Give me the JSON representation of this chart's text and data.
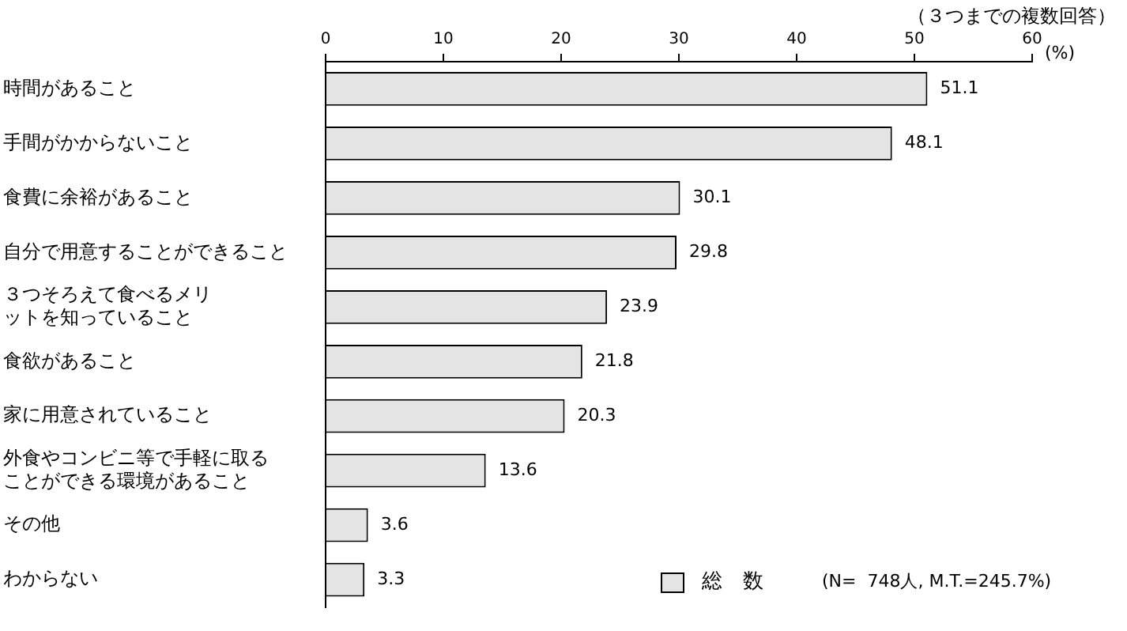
{
  "chart_data": {
    "type": "bar",
    "orientation": "horizontal",
    "categories": [
      "時間があること",
      "手間がかからないこと",
      "食費に余裕があること",
      "自分で用意することができること",
      "３つそろえて食べるメリットを知っていること",
      "食欲があること",
      "家に用意されていること",
      "外食やコンビニ等で手軽に取ることができる環境があること",
      "その他",
      "わからない"
    ],
    "series": [
      {
        "name": "総　数",
        "color": "#e4e4e4",
        "values": [
          51.1,
          48.1,
          30.1,
          29.8,
          23.9,
          21.8,
          20.3,
          13.6,
          3.6,
          3.3
        ]
      }
    ],
    "xlim": [
      0,
      60
    ],
    "xticks": [
      0,
      10,
      20,
      30,
      40,
      50,
      60
    ],
    "xlabel": "(%)",
    "data_labels": true,
    "legend": "bottom right",
    "grid": false,
    "annotations": [
      "（３つまでの複数回答）",
      "(N=  748人, M.T.=245.7%)"
    ]
  }
}
